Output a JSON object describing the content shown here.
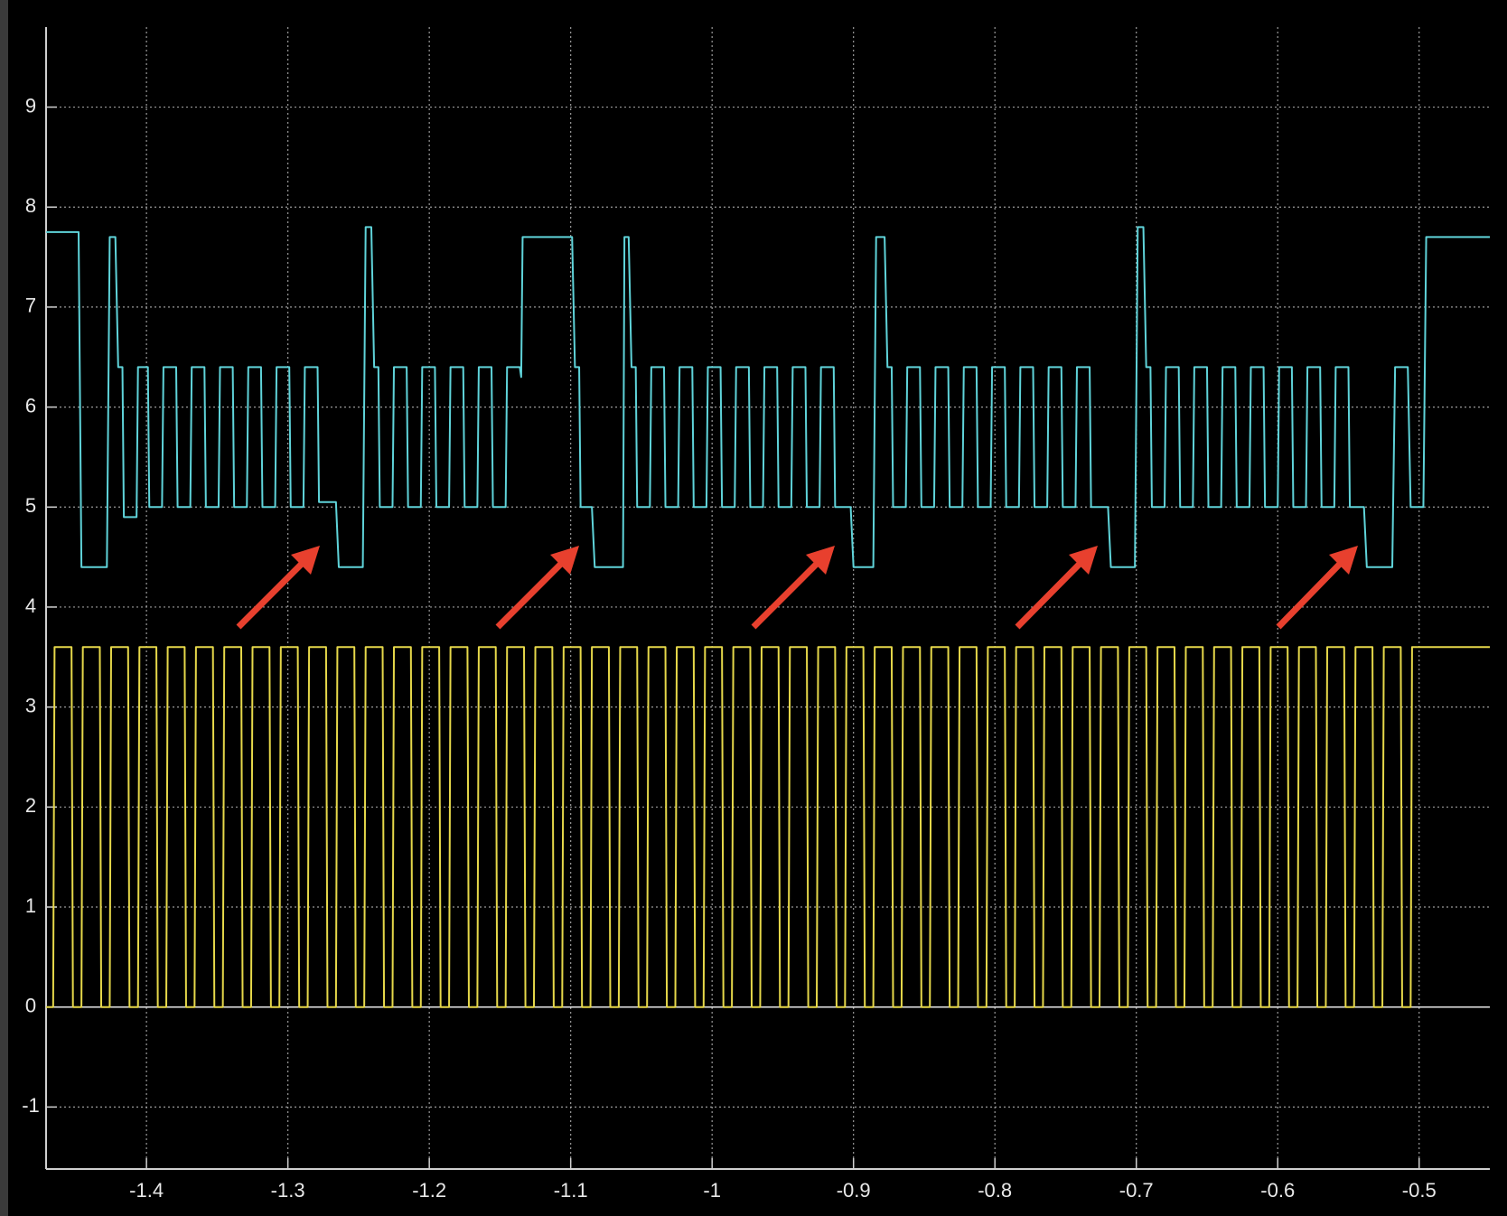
{
  "chart_data": {
    "type": "line",
    "xlim": [
      -1.471,
      -0.45
    ],
    "ylim": [
      -1.62,
      9.8
    ],
    "xticks": [
      -1.4,
      -1.3,
      -1.2,
      -1.1,
      -1,
      -0.9,
      -0.8,
      -0.7,
      -0.6,
      -0.5
    ],
    "yticks": [
      -1,
      0,
      1,
      2,
      3,
      4,
      5,
      6,
      7,
      8,
      9
    ],
    "grid": true,
    "series": [
      {
        "color": "#5fd3d9",
        "x": [
          -1.471,
          -1.448,
          -1.446,
          -1.428,
          -1.426,
          -1.422,
          -1.42,
          -1.417,
          -1.416,
          -1.407,
          -1.406,
          -1.399,
          -1.398,
          -1.389,
          -1.388,
          -1.379,
          -1.378,
          -1.369,
          -1.368,
          -1.359,
          -1.358,
          -1.349,
          -1.348,
          -1.339,
          -1.338,
          -1.329,
          -1.328,
          -1.319,
          -1.318,
          -1.309,
          -1.308,
          -1.299,
          -1.298,
          -1.289,
          -1.288,
          -1.279,
          -1.278,
          -1.266,
          -1.264,
          -1.247,
          -1.245,
          -1.241,
          -1.239,
          -1.236,
          -1.235,
          -1.226,
          -1.225,
          -1.216,
          -1.215,
          -1.206,
          -1.205,
          -1.196,
          -1.195,
          -1.186,
          -1.185,
          -1.176,
          -1.175,
          -1.166,
          -1.165,
          -1.156,
          -1.155,
          -1.146,
          -1.145,
          -1.136,
          -1.135,
          -1.134,
          -1.099,
          -1.097,
          -1.094,
          -1.093,
          -1.085,
          -1.083,
          -1.063,
          -1.062,
          -1.059,
          -1.057,
          -1.054,
          -1.053,
          -1.044,
          -1.043,
          -1.034,
          -1.033,
          -1.024,
          -1.023,
          -1.014,
          -1.013,
          -1.004,
          -1.003,
          -0.994,
          -0.993,
          -0.984,
          -0.983,
          -0.974,
          -0.973,
          -0.964,
          -0.963,
          -0.954,
          -0.953,
          -0.944,
          -0.943,
          -0.934,
          -0.933,
          -0.924,
          -0.923,
          -0.914,
          -0.913,
          -0.902,
          -0.9,
          -0.886,
          -0.884,
          -0.878,
          -0.876,
          -0.873,
          -0.872,
          -0.863,
          -0.862,
          -0.853,
          -0.852,
          -0.843,
          -0.842,
          -0.833,
          -0.832,
          -0.823,
          -0.822,
          -0.813,
          -0.812,
          -0.803,
          -0.802,
          -0.793,
          -0.792,
          -0.783,
          -0.782,
          -0.773,
          -0.772,
          -0.763,
          -0.762,
          -0.753,
          -0.752,
          -0.743,
          -0.742,
          -0.733,
          -0.732,
          -0.72,
          -0.718,
          -0.701,
          -0.699,
          -0.695,
          -0.693,
          -0.69,
          -0.689,
          -0.68,
          -0.679,
          -0.67,
          -0.669,
          -0.66,
          -0.659,
          -0.65,
          -0.649,
          -0.64,
          -0.639,
          -0.63,
          -0.629,
          -0.62,
          -0.619,
          -0.61,
          -0.609,
          -0.6,
          -0.599,
          -0.59,
          -0.589,
          -0.58,
          -0.579,
          -0.57,
          -0.569,
          -0.56,
          -0.559,
          -0.55,
          -0.549,
          -0.539,
          -0.537,
          -0.519,
          -0.517,
          -0.508,
          -0.506,
          -0.497,
          -0.495,
          -0.45
        ],
        "values": [
          7.75,
          7.75,
          4.4,
          4.4,
          7.7,
          7.7,
          6.4,
          6.4,
          4.9,
          4.9,
          6.4,
          6.4,
          5,
          5,
          6.4,
          6.4,
          5,
          5,
          6.4,
          6.4,
          5,
          5,
          6.4,
          6.4,
          5,
          5,
          6.4,
          6.4,
          5,
          5,
          6.4,
          6.4,
          5,
          5,
          6.4,
          6.4,
          5.05,
          5.05,
          4.4,
          4.4,
          7.8,
          7.8,
          6.4,
          6.4,
          5,
          5,
          6.4,
          6.4,
          5,
          5,
          6.4,
          6.4,
          5,
          5,
          6.4,
          6.4,
          5,
          5,
          6.4,
          6.4,
          5,
          5,
          6.4,
          6.4,
          6.3,
          7.7,
          7.7,
          6.4,
          6.4,
          5,
          5,
          4.4,
          4.4,
          7.7,
          7.7,
          6.4,
          6.4,
          5,
          5,
          6.4,
          6.4,
          5,
          5,
          6.4,
          6.4,
          5,
          5,
          6.4,
          6.4,
          5,
          5,
          6.4,
          6.4,
          5,
          5,
          6.4,
          6.4,
          5,
          5,
          6.4,
          6.4,
          5,
          5,
          6.4,
          6.4,
          5,
          5,
          4.4,
          4.4,
          7.7,
          7.7,
          6.4,
          6.4,
          5,
          5,
          6.4,
          6.4,
          5,
          5,
          6.4,
          6.4,
          5,
          5,
          6.4,
          6.4,
          5,
          5,
          6.4,
          6.4,
          5,
          5,
          6.4,
          6.4,
          5,
          5,
          6.4,
          6.4,
          5,
          5,
          6.4,
          6.4,
          5,
          5,
          4.4,
          4.4,
          7.8,
          7.8,
          6.4,
          6.4,
          5,
          5,
          6.4,
          6.4,
          5,
          5,
          6.4,
          6.4,
          5,
          5,
          6.4,
          6.4,
          5,
          5,
          6.4,
          6.4,
          5,
          5,
          6.4,
          6.4,
          5,
          5,
          6.4,
          6.4,
          5,
          5,
          6.4,
          6.4,
          5,
          5,
          4.4,
          4.4,
          6.4,
          6.4,
          5,
          5,
          7.7,
          7.7
        ]
      },
      {
        "color": "#e6d84a",
        "x": [
          -1.471,
          -1.466,
          -1.465,
          -1.453,
          -1.452,
          -1.446,
          -1.445,
          -1.433,
          -1.432,
          -1.426,
          -1.425,
          -1.413,
          -1.412,
          -1.406,
          -1.405,
          -1.393,
          -1.392,
          -1.386,
          -1.385,
          -1.373,
          -1.372,
          -1.366,
          -1.365,
          -1.353,
          -1.352,
          -1.346,
          -1.345,
          -1.333,
          -1.332,
          -1.326,
          -1.325,
          -1.313,
          -1.312,
          -1.306,
          -1.305,
          -1.293,
          -1.292,
          -1.286,
          -1.285,
          -1.273,
          -1.272,
          -1.266,
          -1.265,
          -1.253,
          -1.252,
          -1.246,
          -1.245,
          -1.233,
          -1.232,
          -1.226,
          -1.225,
          -1.213,
          -1.212,
          -1.206,
          -1.205,
          -1.193,
          -1.192,
          -1.186,
          -1.185,
          -1.173,
          -1.172,
          -1.166,
          -1.165,
          -1.153,
          -1.152,
          -1.146,
          -1.145,
          -1.133,
          -1.132,
          -1.126,
          -1.125,
          -1.113,
          -1.112,
          -1.106,
          -1.105,
          -1.093,
          -1.092,
          -1.086,
          -1.085,
          -1.073,
          -1.072,
          -1.066,
          -1.065,
          -1.053,
          -1.052,
          -1.046,
          -1.045,
          -1.033,
          -1.032,
          -1.026,
          -1.025,
          -1.013,
          -1.012,
          -1.006,
          -1.005,
          -0.993,
          -0.992,
          -0.986,
          -0.985,
          -0.973,
          -0.972,
          -0.966,
          -0.965,
          -0.953,
          -0.952,
          -0.946,
          -0.945,
          -0.933,
          -0.932,
          -0.926,
          -0.925,
          -0.913,
          -0.912,
          -0.906,
          -0.905,
          -0.893,
          -0.892,
          -0.886,
          -0.885,
          -0.873,
          -0.872,
          -0.866,
          -0.865,
          -0.853,
          -0.852,
          -0.846,
          -0.845,
          -0.833,
          -0.832,
          -0.826,
          -0.825,
          -0.813,
          -0.812,
          -0.806,
          -0.805,
          -0.793,
          -0.792,
          -0.786,
          -0.785,
          -0.773,
          -0.772,
          -0.766,
          -0.765,
          -0.753,
          -0.752,
          -0.746,
          -0.745,
          -0.733,
          -0.732,
          -0.726,
          -0.725,
          -0.713,
          -0.712,
          -0.706,
          -0.705,
          -0.693,
          -0.692,
          -0.686,
          -0.685,
          -0.673,
          -0.672,
          -0.666,
          -0.665,
          -0.653,
          -0.652,
          -0.646,
          -0.645,
          -0.633,
          -0.632,
          -0.626,
          -0.625,
          -0.613,
          -0.612,
          -0.606,
          -0.605,
          -0.593,
          -0.592,
          -0.586,
          -0.585,
          -0.573,
          -0.572,
          -0.566,
          -0.565,
          -0.553,
          -0.552,
          -0.546,
          -0.545,
          -0.533,
          -0.532,
          -0.526,
          -0.525,
          -0.513,
          -0.512,
          -0.506,
          -0.505,
          -0.45
        ],
        "values": [
          0,
          0,
          3.6,
          3.6,
          0,
          0,
          3.6,
          3.6,
          0,
          0,
          3.6,
          3.6,
          0,
          0,
          3.6,
          3.6,
          0,
          0,
          3.6,
          3.6,
          0,
          0,
          3.6,
          3.6,
          0,
          0,
          3.6,
          3.6,
          0,
          0,
          3.6,
          3.6,
          0,
          0,
          3.6,
          3.6,
          0,
          0,
          3.6,
          3.6,
          0,
          0,
          3.6,
          3.6,
          0,
          0,
          3.6,
          3.6,
          0,
          0,
          3.6,
          3.6,
          0,
          0,
          3.6,
          3.6,
          0,
          0,
          3.6,
          3.6,
          0,
          0,
          3.6,
          3.6,
          0,
          0,
          3.6,
          3.6,
          0,
          0,
          3.6,
          3.6,
          0,
          0,
          3.6,
          3.6,
          0,
          0,
          3.6,
          3.6,
          0,
          0,
          3.6,
          3.6,
          0,
          0,
          3.6,
          3.6,
          0,
          0,
          3.6,
          3.6,
          0,
          0,
          3.6,
          3.6,
          0,
          0,
          3.6,
          3.6,
          0,
          0,
          3.6,
          3.6,
          0,
          0,
          3.6,
          3.6,
          0,
          0,
          3.6,
          3.6,
          0,
          0,
          3.6,
          3.6,
          0,
          0,
          3.6,
          3.6,
          0,
          0,
          3.6,
          3.6,
          0,
          0,
          3.6,
          3.6,
          0,
          0,
          3.6,
          3.6,
          0,
          0,
          3.6,
          3.6,
          0,
          0,
          3.6,
          3.6,
          0,
          0,
          3.6,
          3.6,
          0,
          0,
          3.6,
          3.6,
          0,
          0,
          3.6,
          3.6,
          0,
          0,
          3.6,
          3.6,
          0,
          0,
          3.6,
          3.6,
          0,
          0,
          3.6,
          3.6,
          0,
          0,
          3.6,
          3.6,
          0,
          0,
          3.6,
          3.6,
          0,
          0,
          3.6,
          3.6,
          0,
          0,
          3.6,
          3.6,
          0,
          0,
          3.6,
          3.6,
          0,
          0,
          3.6,
          3.6,
          0,
          0,
          3.6,
          3.6,
          0,
          0,
          3.6,
          3.6
        ]
      }
    ]
  }
}
